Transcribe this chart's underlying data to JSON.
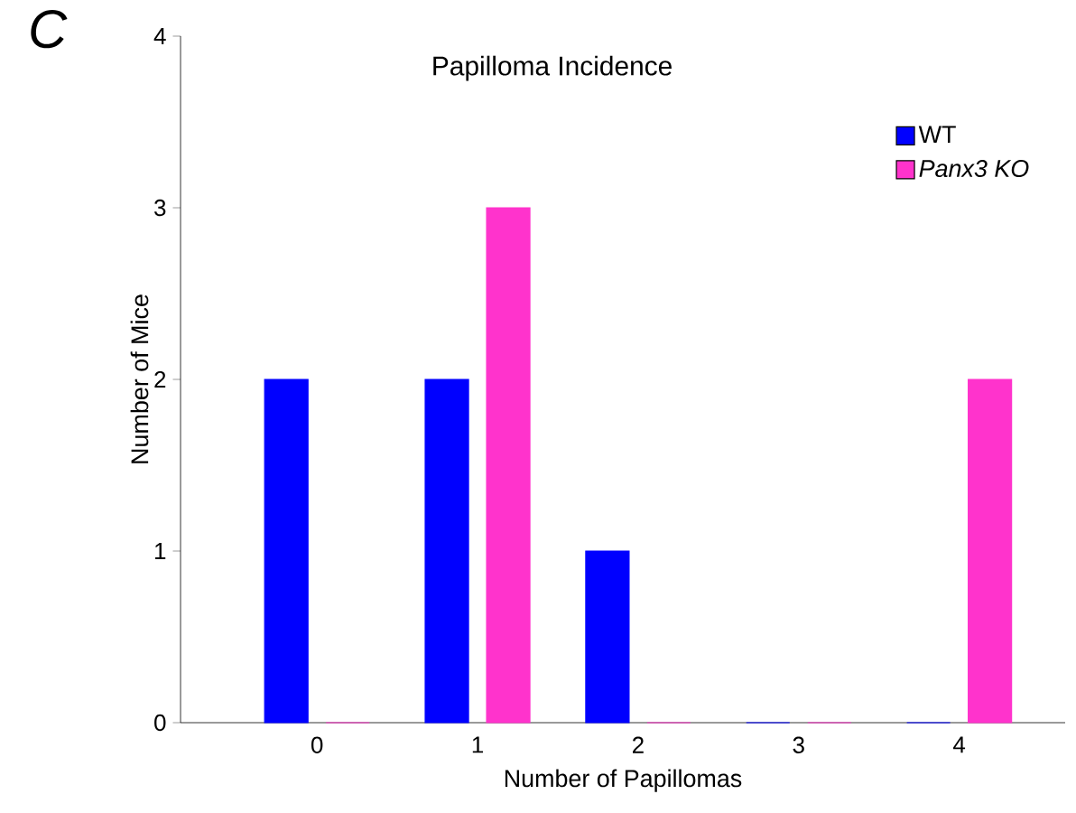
{
  "chart_data": {
    "type": "bar",
    "title": "Papilloma Incidence",
    "xlabel": "Number of Papillomas",
    "ylabel": "Number of Mice",
    "categories": [
      "0",
      "1",
      "2",
      "3",
      "4"
    ],
    "series": [
      {
        "name": "WT",
        "color": "#0000ff",
        "values": [
          2,
          2,
          1,
          0,
          0
        ]
      },
      {
        "name": "*Panx3 KO*",
        "color": "#ff33cc",
        "values": [
          0,
          3,
          0,
          0,
          2
        ]
      }
    ],
    "ylim": [
      0,
      4
    ],
    "yticks": [
      0,
      1,
      2,
      3,
      4
    ],
    "legend": "top right",
    "annotations": [
      "C"
    ]
  }
}
